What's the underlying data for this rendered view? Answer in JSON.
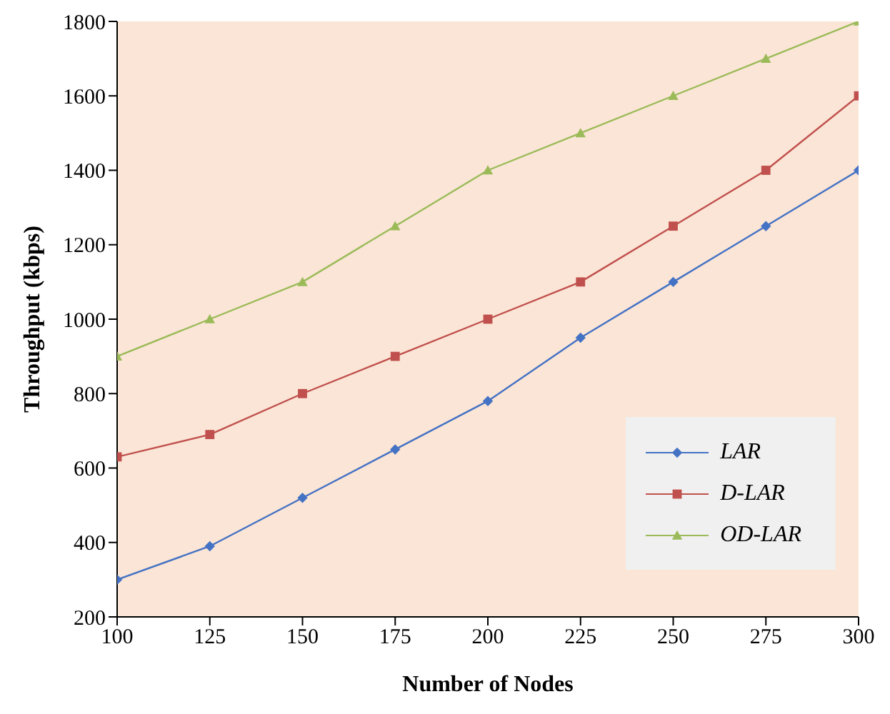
{
  "chart_data": {
    "type": "line",
    "xlabel": "Number of Nodes",
    "ylabel": "Throughput (kbps)",
    "x": [
      100,
      125,
      150,
      175,
      200,
      225,
      250,
      275,
      300
    ],
    "series": [
      {
        "name": "LAR",
        "color": "#4472c4",
        "marker": "diamond",
        "values": [
          300,
          390,
          520,
          650,
          780,
          950,
          1100,
          1250,
          1400
        ]
      },
      {
        "name": "D-LAR",
        "color": "#c0504d",
        "marker": "square",
        "values": [
          630,
          690,
          800,
          900,
          1000,
          1100,
          1250,
          1400,
          1600
        ]
      },
      {
        "name": "OD-LAR",
        "color": "#9bbb59",
        "marker": "triangle",
        "values": [
          900,
          1000,
          1100,
          1250,
          1400,
          1500,
          1600,
          1700,
          1800
        ]
      }
    ],
    "xlim": [
      100,
      300
    ],
    "xticks": [
      100,
      125,
      150,
      175,
      200,
      225,
      250,
      275,
      300
    ],
    "ylim": [
      200,
      1800
    ],
    "yticks": [
      200,
      400,
      600,
      800,
      1000,
      1200,
      1400,
      1600,
      1800
    ],
    "grid": false,
    "legend": "right",
    "line_style": "solid"
  }
}
